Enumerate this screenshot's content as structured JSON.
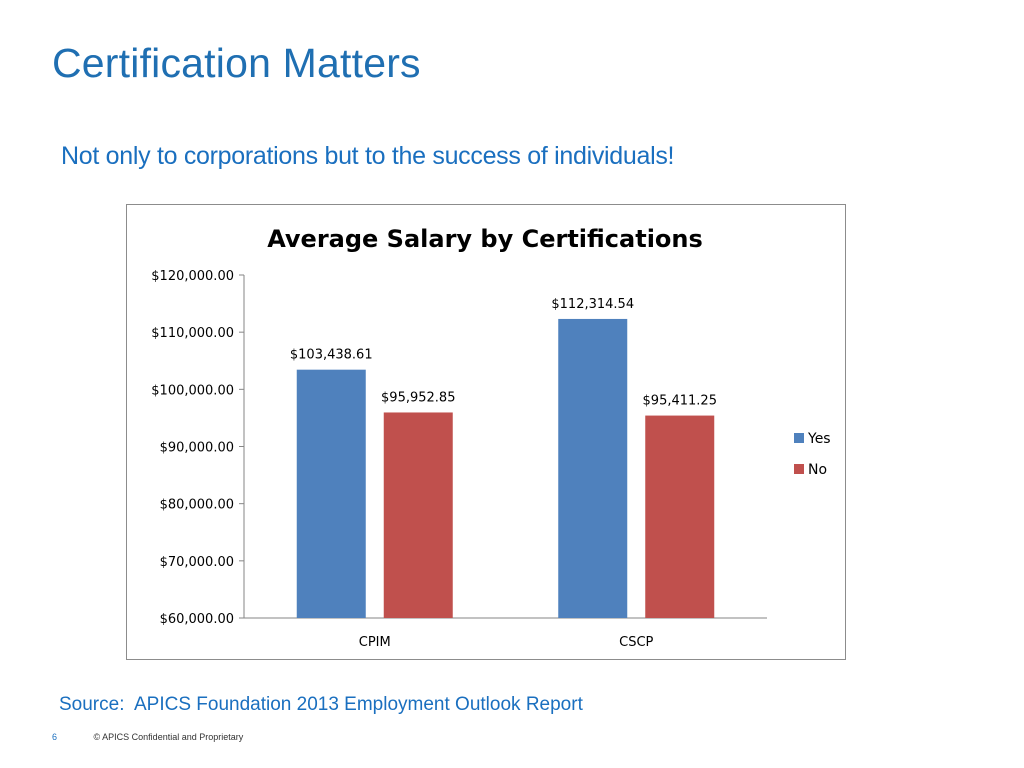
{
  "slide": {
    "title": "Certification Matters",
    "subtitle": "Not only to corporations but to the success of individuals!",
    "source": "Source:  APICS Foundation 2013 Employment Outlook Report",
    "page_number": "6",
    "footer_text": "© APICS Confidential and Proprietary"
  },
  "colors": {
    "title": "#1F6FB2",
    "accent_text": "#1A6FBF",
    "series_yes": "#4F81BD",
    "series_no": "#C0504D"
  },
  "chart_data": {
    "type": "bar",
    "title": "Average Salary by Certifications",
    "xlabel": "",
    "ylabel": "",
    "categories": [
      "CPIM",
      "CSCP"
    ],
    "series": [
      {
        "name": "Yes",
        "values": [
          103438.61,
          112314.54
        ],
        "labels": [
          "$103,438.61",
          "$112,314.54"
        ],
        "color": "#4F81BD"
      },
      {
        "name": "No",
        "values": [
          95952.85,
          95411.25
        ],
        "labels": [
          "$95,952.85",
          "$95,411.25"
        ],
        "color": "#C0504D"
      }
    ],
    "ylim": [
      60000,
      120000
    ],
    "yticks": [
      60000,
      70000,
      80000,
      90000,
      100000,
      110000,
      120000
    ],
    "ytick_labels": [
      "$60,000.00",
      "$70,000.00",
      "$80,000.00",
      "$90,000.00",
      "$100,000.00",
      "$110,000.00",
      "$120,000.00"
    ],
    "grid": false,
    "legend_position": "right"
  }
}
